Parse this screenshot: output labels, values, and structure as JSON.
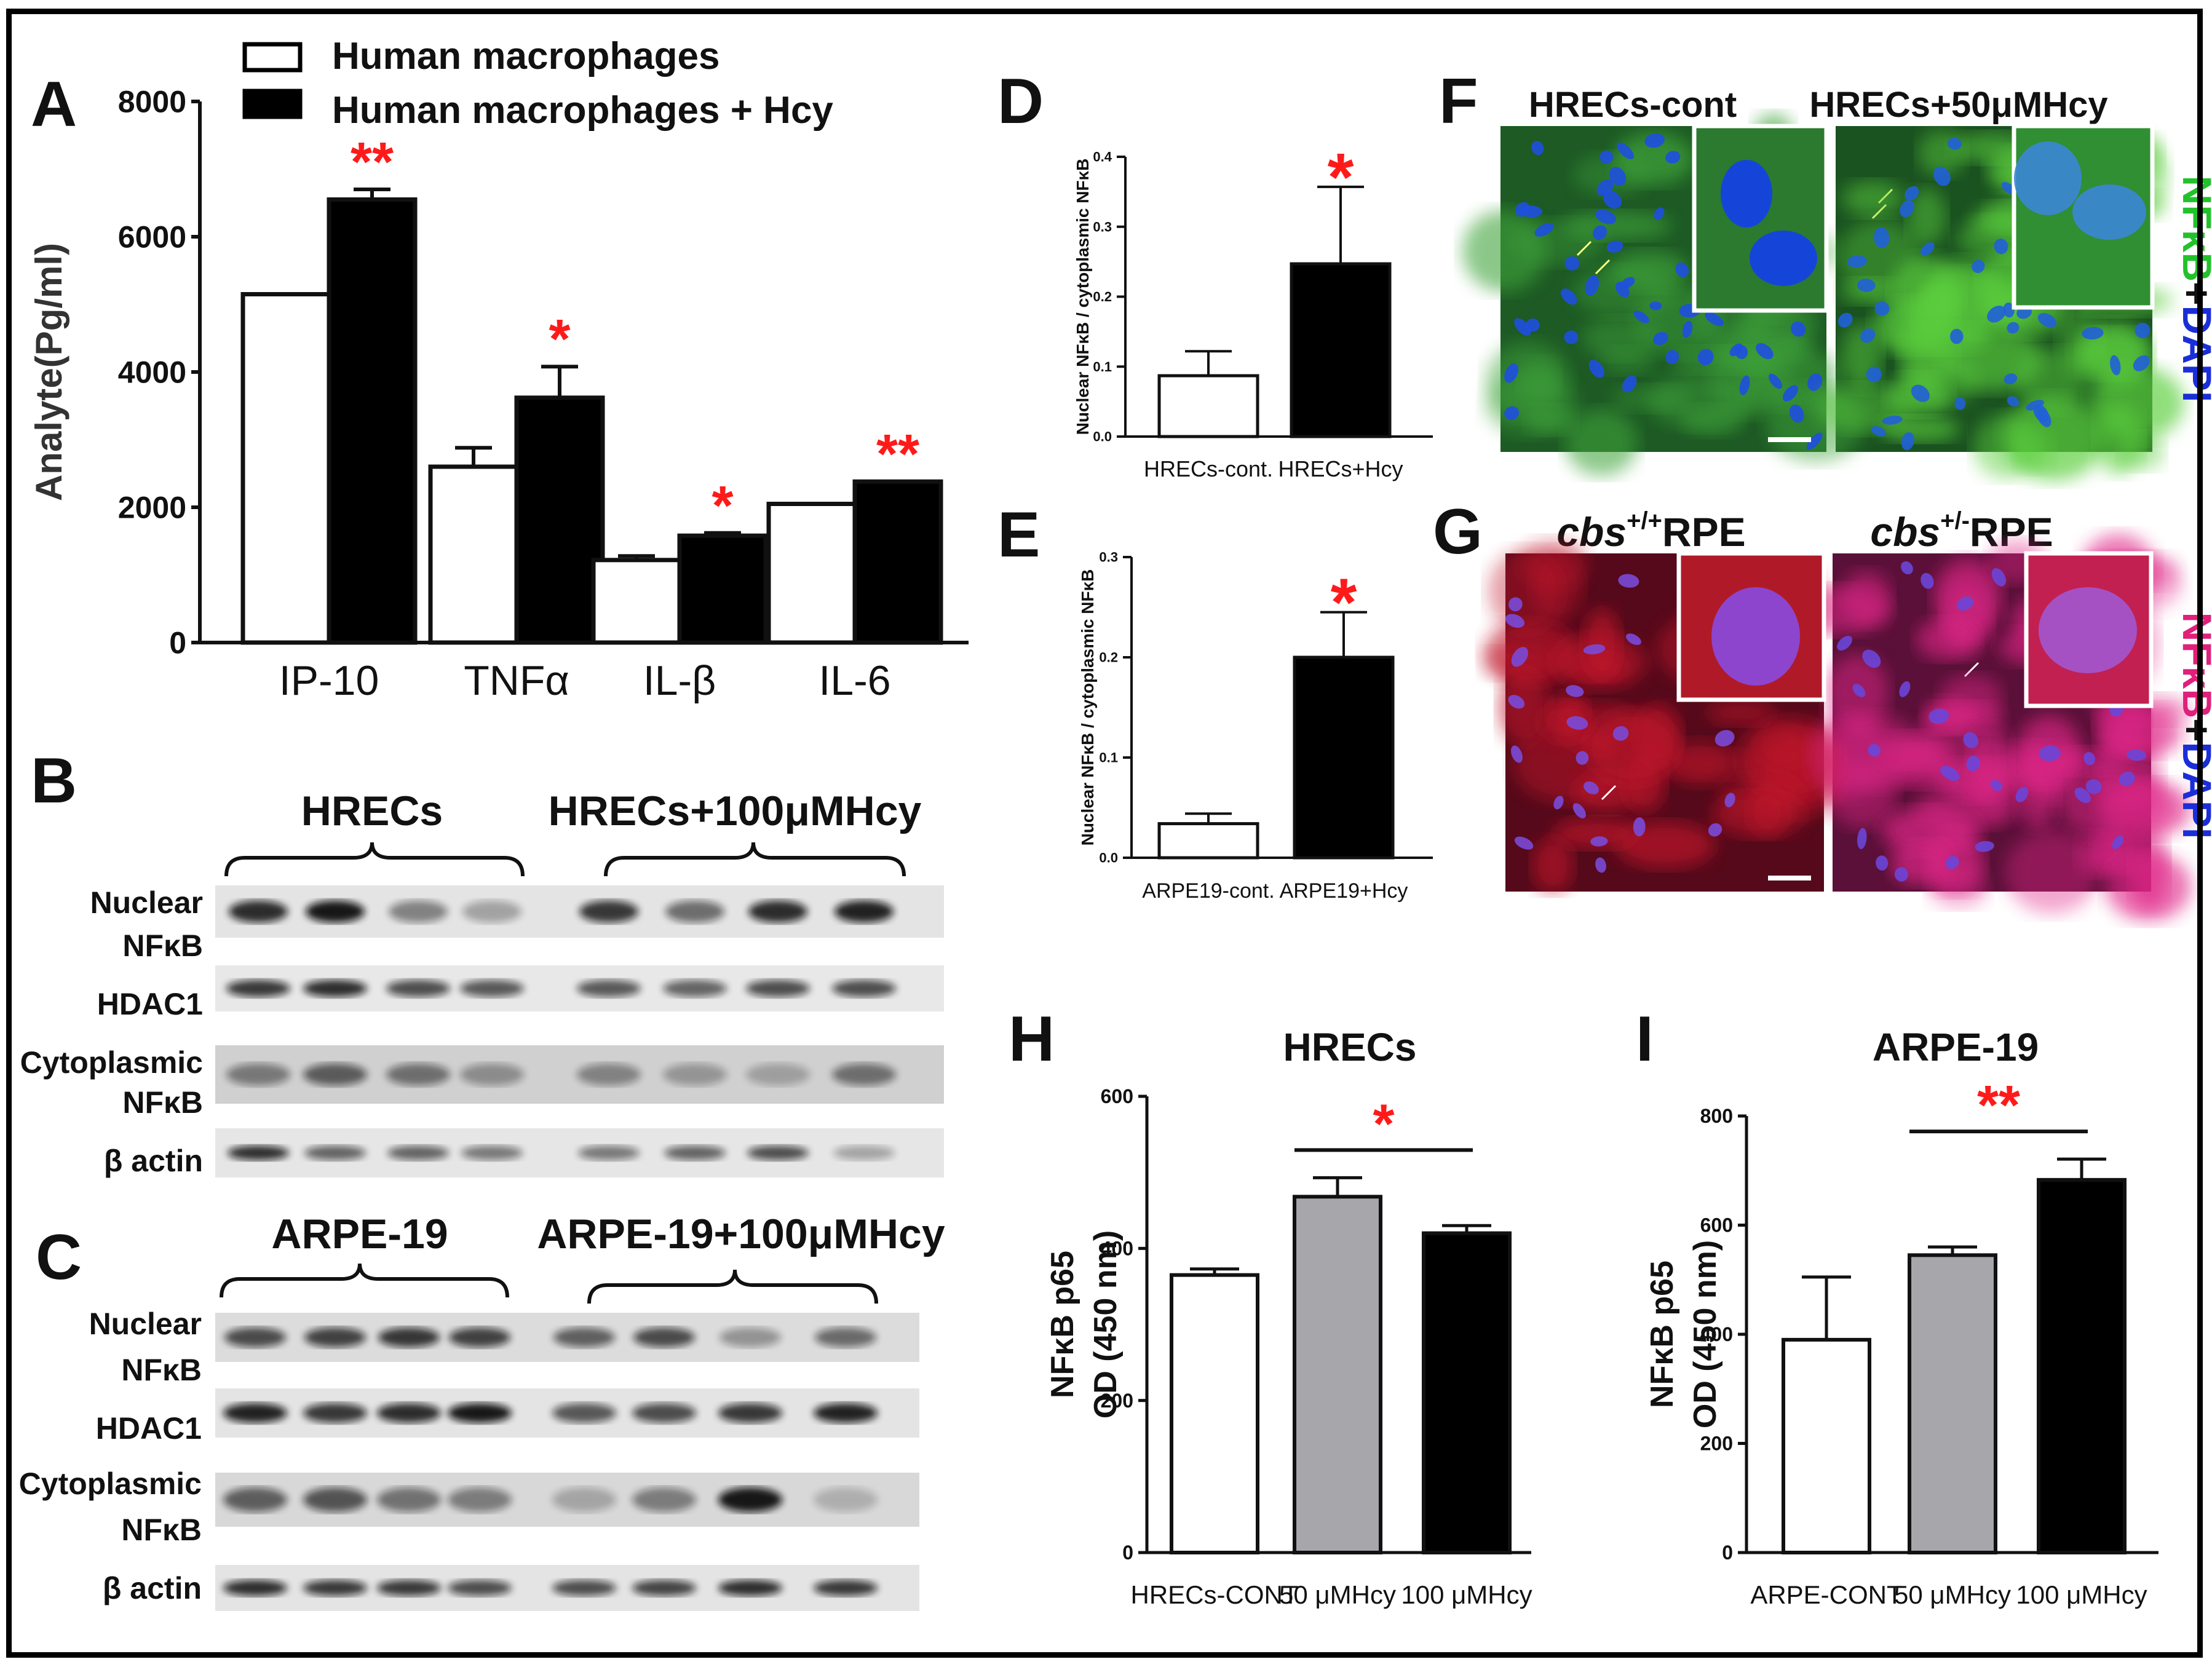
{
  "panels": {
    "A": {
      "letter": "A"
    },
    "B": {
      "letter": "B"
    },
    "C": {
      "letter": "C"
    },
    "D": {
      "letter": "D"
    },
    "E": {
      "letter": "E"
    },
    "F": {
      "letter": "F"
    },
    "G": {
      "letter": "G"
    },
    "H": {
      "letter": "H"
    },
    "I": {
      "letter": "I"
    }
  },
  "legendA": {
    "open": "Human macrophages",
    "filled": "Human macrophages + Hcy"
  },
  "blotB": {
    "group1": "HRECs",
    "group2": "HRECs+100μMHcy",
    "rows": [
      "Nuclear",
      "NFκB",
      "HDAC1",
      "Cytoplasmic",
      "NFκB",
      "β actin"
    ]
  },
  "blotC": {
    "group1": "ARPE-19",
    "group2": "ARPE-19+100μMHcy",
    "rows": [
      "Nuclear",
      "NFκB",
      "HDAC1",
      "Cytoplasmic",
      "NFκB",
      "β actin"
    ]
  },
  "microF": {
    "left": "HRECs-cont",
    "right": "HRECs+50μMHcy",
    "stain1": "NFκB",
    "plus": "+",
    "stain2": "DAPI"
  },
  "microG": {
    "left_italic": "cbs",
    "left_sup": "+/+",
    "left_rest": "RPE",
    "right_italic": "cbs",
    "right_sup": "+/-",
    "right_rest": "RPE",
    "stain1": "NFκB",
    "plus": "+",
    "stain2": "DAPI"
  },
  "colors": {
    "open": "#ffffff",
    "filled": "#000000",
    "gray": "#a6a6ab",
    "sig": "#ff1a1a",
    "text": "#111111"
  },
  "chart_data": [
    {
      "id": "A",
      "type": "bar",
      "ylabel": "Analyte(Pg/ml)",
      "categories": [
        "IP-10",
        "TNFα",
        "IL-β",
        "IL-6"
      ],
      "series": [
        {
          "name": "Human macrophages",
          "values": [
            5150,
            2600,
            1220,
            2050
          ],
          "errors": [
            0,
            280,
            60,
            0
          ],
          "color": "#ffffff"
        },
        {
          "name": "Human macrophages + Hcy",
          "values": [
            6550,
            3620,
            1580,
            2380
          ],
          "errors": [
            150,
            460,
            40,
            0
          ],
          "color": "#000000"
        }
      ],
      "significance": [
        "**",
        "*",
        "*",
        "**"
      ],
      "ylim": [
        0,
        8000
      ],
      "yticks": [
        "0",
        "2000",
        "4000",
        "6000",
        "8000"
      ],
      "legend": "top-left"
    },
    {
      "id": "D",
      "type": "bar",
      "ylabel": "Nuclear NFκB / cytoplasmic NFκB",
      "categories": [
        "HRECs-cont.",
        "HRECs+Hcy"
      ],
      "values": [
        0.087,
        0.247
      ],
      "errors": [
        0.035,
        0.11
      ],
      "colors": [
        "#ffffff",
        "#000000"
      ],
      "significance": [
        "",
        "*"
      ],
      "ylim": [
        0,
        0.4
      ],
      "yticks": [
        "0.0",
        "0.1",
        "0.2",
        "0.3",
        "0.4"
      ]
    },
    {
      "id": "E",
      "type": "bar",
      "ylabel": "Nuclear NFκB / cytoplasmic NFκB",
      "categories": [
        "ARPE19-cont.",
        "ARPE19+Hcy"
      ],
      "values": [
        0.034,
        0.2
      ],
      "errors": [
        0.01,
        0.045
      ],
      "colors": [
        "#ffffff",
        "#000000"
      ],
      "significance": [
        "",
        "*"
      ],
      "ylim": [
        0,
        0.3
      ],
      "yticks": [
        "0.0",
        "0.1",
        "0.2",
        "0.3"
      ]
    },
    {
      "id": "H",
      "type": "bar",
      "title": "HRECs",
      "ylabel": [
        "NFκB p65",
        "OD (450 nm)"
      ],
      "categories": [
        "HRECs-CONT",
        "50 μMHcy",
        "100 μMHcy"
      ],
      "values": [
        365,
        468,
        420
      ],
      "errors": [
        8,
        25,
        10
      ],
      "colors": [
        "#ffffff",
        "#a6a6ab",
        "#000000"
      ],
      "significance": "*",
      "ylim": [
        0,
        600
      ],
      "yticks": [
        "0",
        "200",
        "400",
        "600"
      ]
    },
    {
      "id": "I",
      "type": "bar",
      "title": "ARPE-19",
      "ylabel": [
        "NFκB p65",
        "OD (450 nm)"
      ],
      "categories": [
        "ARPE-CONT",
        "50 μMHcy",
        "100 μMHcy"
      ],
      "values": [
        390,
        545,
        683
      ],
      "errors": [
        115,
        15,
        38
      ],
      "colors": [
        "#ffffff",
        "#a6a6ab",
        "#000000"
      ],
      "significance": "**",
      "ylim": [
        0,
        800
      ],
      "yticks": [
        "0",
        "200",
        "400",
        "600",
        "800"
      ]
    }
  ]
}
